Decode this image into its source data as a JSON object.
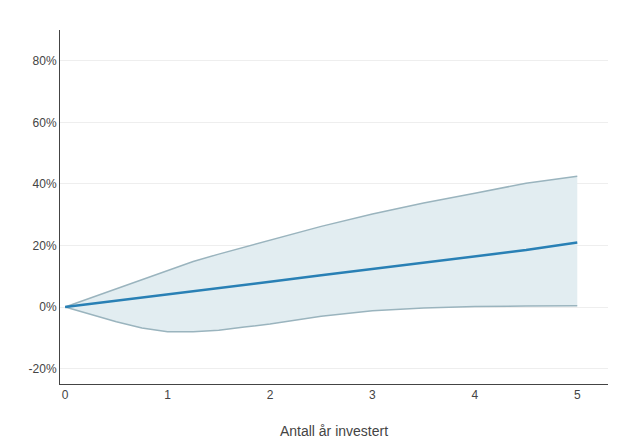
{
  "chart_data": {
    "type": "line",
    "xlabel": "Antall år investert",
    "x": [
      0,
      0.25,
      0.5,
      0.75,
      1.0,
      1.25,
      1.5,
      1.75,
      2.0,
      2.5,
      3.0,
      3.5,
      4.0,
      4.5,
      5.0
    ],
    "color": "#e2edf1",
    "series": [
      {
        "color": "#9ab4be",
        "values": [
          0,
          0.03,
          0.06,
          0.09,
          0.12,
          0.148,
          0.172,
          0.195,
          0.218,
          0.262,
          0.302,
          0.338,
          0.37,
          0.402,
          0.425
        ]
      },
      {
        "color": "#9ab4be",
        "values": [
          0,
          -0.025,
          -0.048,
          -0.068,
          -0.08,
          -0.08,
          -0.075,
          -0.065,
          -0.055,
          -0.03,
          -0.012,
          -0.003,
          0.002,
          0.003,
          0.004
        ]
      },
      {
        "color": "#2980b5",
        "values": [
          0,
          0.01,
          0.02,
          0.03,
          0.04,
          0.051,
          0.061,
          0.072,
          0.082,
          0.103,
          0.123,
          0.144,
          0.164,
          0.185,
          0.21
        ]
      }
    ],
    "xlim": [
      -0.05,
      5.3
    ],
    "xticks": [
      0,
      1,
      2,
      3,
      4,
      5
    ],
    "ylim": [
      -0.25,
      0.9
    ],
    "yticks": [
      {
        "value": -0.2,
        "label": "-20%"
      },
      {
        "value": 0.0,
        "label": "0%"
      },
      {
        "value": 0.2,
        "label": "20%"
      },
      {
        "value": 0.4,
        "label": "40%"
      },
      {
        "value": 0.6,
        "label": "60%"
      },
      {
        "value": 0.8,
        "label": "80%"
      }
    ],
    "grid": true
  }
}
